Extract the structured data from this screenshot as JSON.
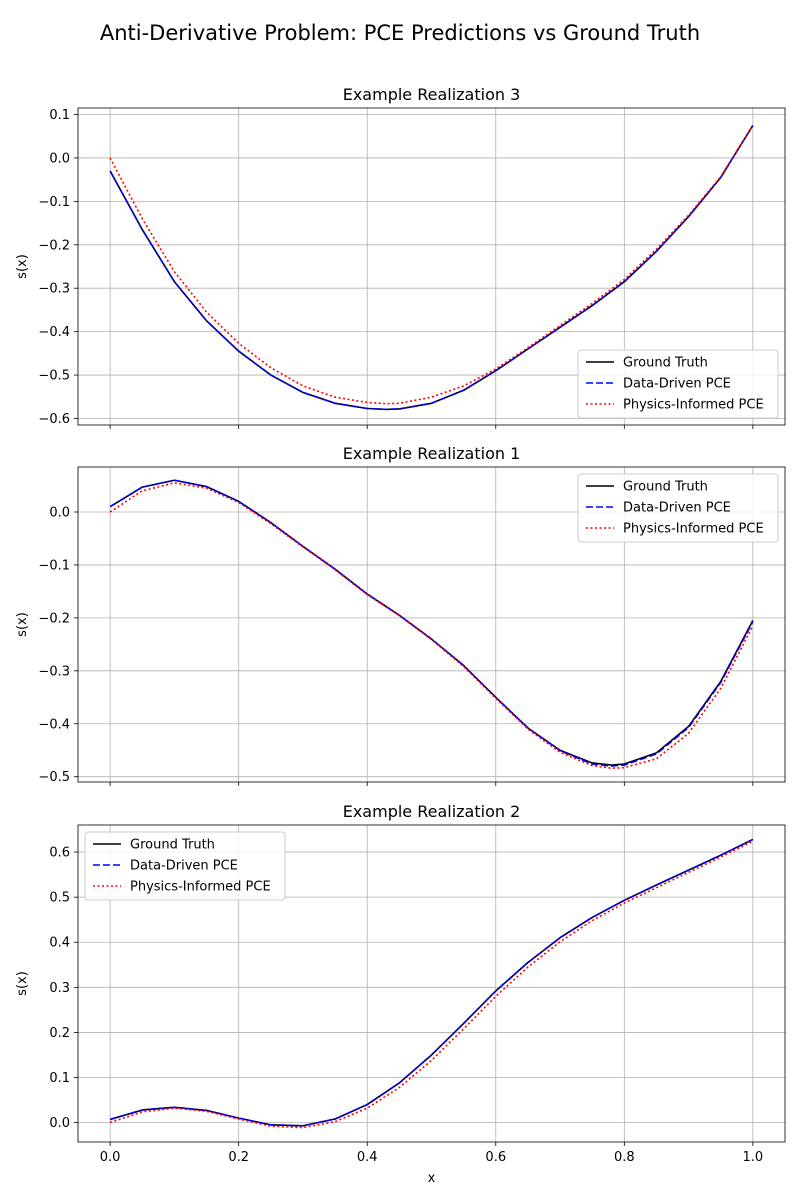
{
  "figure": {
    "suptitle": "Anti-Derivative Problem: PCE Predictions vs Ground Truth"
  },
  "colors": {
    "ground_truth": "#000000",
    "data_driven": "#0000ff",
    "physics_informed": "#ff0000",
    "grid": "#b0b0b0"
  },
  "chart_data": [
    {
      "type": "line",
      "title": "Example Realization 3",
      "xlabel": "",
      "ylabel": "s(x)",
      "xlim": [
        -0.05,
        1.05
      ],
      "ylim": [
        -0.615,
        0.115
      ],
      "xticks": [
        0.0,
        0.2,
        0.4,
        0.6,
        0.8,
        1.0
      ],
      "xtick_labels_visible": false,
      "yticks": [
        -0.6,
        -0.5,
        -0.4,
        -0.3,
        -0.2,
        -0.1,
        0.0,
        0.1
      ],
      "ytick_labels": [
        "−0.6",
        "−0.5",
        "−0.4",
        "−0.3",
        "−0.2",
        "−0.1",
        "0.0",
        "0.1"
      ],
      "grid": true,
      "legend_position": "lower-right",
      "x": [
        0.0,
        0.05,
        0.1,
        0.15,
        0.2,
        0.25,
        0.3,
        0.35,
        0.4,
        0.43,
        0.45,
        0.5,
        0.55,
        0.6,
        0.65,
        0.7,
        0.75,
        0.8,
        0.85,
        0.9,
        0.95,
        1.0
      ],
      "series": [
        {
          "name": "Ground Truth",
          "style": "solid",
          "color_key": "ground_truth",
          "values": [
            -0.03,
            -0.165,
            -0.285,
            -0.375,
            -0.445,
            -0.5,
            -0.54,
            -0.565,
            -0.577,
            -0.579,
            -0.578,
            -0.565,
            -0.535,
            -0.49,
            -0.44,
            -0.39,
            -0.34,
            -0.285,
            -0.215,
            -0.135,
            -0.045,
            0.075
          ]
        },
        {
          "name": "Data-Driven PCE",
          "style": "dashed",
          "color_key": "data_driven",
          "values": [
            -0.03,
            -0.165,
            -0.285,
            -0.375,
            -0.445,
            -0.5,
            -0.54,
            -0.565,
            -0.577,
            -0.579,
            -0.578,
            -0.565,
            -0.535,
            -0.49,
            -0.44,
            -0.39,
            -0.34,
            -0.285,
            -0.215,
            -0.135,
            -0.045,
            0.075
          ]
        },
        {
          "name": "Physics-Informed PCE",
          "style": "dotted",
          "color_key": "physics_informed",
          "values": [
            0.0,
            -0.14,
            -0.262,
            -0.355,
            -0.427,
            -0.483,
            -0.525,
            -0.551,
            -0.563,
            -0.566,
            -0.565,
            -0.551,
            -0.525,
            -0.486,
            -0.437,
            -0.386,
            -0.335,
            -0.28,
            -0.21,
            -0.132,
            -0.043,
            0.075
          ]
        }
      ]
    },
    {
      "type": "line",
      "title": "Example Realization 1",
      "xlabel": "",
      "ylabel": "s(x)",
      "xlim": [
        -0.05,
        1.05
      ],
      "ylim": [
        -0.51,
        0.085
      ],
      "xticks": [
        0.0,
        0.2,
        0.4,
        0.6,
        0.8,
        1.0
      ],
      "xtick_labels_visible": false,
      "yticks": [
        -0.5,
        -0.4,
        -0.3,
        -0.2,
        -0.1,
        0.0
      ],
      "ytick_labels": [
        "−0.5",
        "−0.4",
        "−0.3",
        "−0.2",
        "−0.1",
        "0.0"
      ],
      "grid": true,
      "legend_position": "upper-right",
      "x": [
        0.0,
        0.05,
        0.1,
        0.15,
        0.2,
        0.25,
        0.3,
        0.35,
        0.4,
        0.45,
        0.5,
        0.55,
        0.6,
        0.65,
        0.7,
        0.75,
        0.78,
        0.8,
        0.85,
        0.9,
        0.95,
        1.0
      ],
      "series": [
        {
          "name": "Ground Truth",
          "style": "solid",
          "color_key": "ground_truth",
          "values": [
            0.01,
            0.047,
            0.06,
            0.048,
            0.02,
            -0.02,
            -0.065,
            -0.108,
            -0.155,
            -0.195,
            -0.24,
            -0.29,
            -0.35,
            -0.408,
            -0.45,
            -0.474,
            -0.478,
            -0.476,
            -0.455,
            -0.405,
            -0.32,
            -0.205
          ]
        },
        {
          "name": "Data-Driven PCE",
          "style": "dashed",
          "color_key": "data_driven",
          "values": [
            0.01,
            0.047,
            0.06,
            0.048,
            0.02,
            -0.02,
            -0.065,
            -0.108,
            -0.155,
            -0.195,
            -0.24,
            -0.29,
            -0.35,
            -0.408,
            -0.451,
            -0.476,
            -0.48,
            -0.478,
            -0.457,
            -0.407,
            -0.322,
            -0.207
          ]
        },
        {
          "name": "Physics-Informed PCE",
          "style": "dotted",
          "color_key": "physics_informed",
          "values": [
            0.0,
            0.04,
            0.055,
            0.045,
            0.018,
            -0.022,
            -0.066,
            -0.109,
            -0.156,
            -0.196,
            -0.241,
            -0.292,
            -0.352,
            -0.41,
            -0.454,
            -0.479,
            -0.484,
            -0.483,
            -0.466,
            -0.418,
            -0.333,
            -0.215
          ]
        }
      ]
    },
    {
      "type": "line",
      "title": "Example Realization 2",
      "xlabel": "x",
      "ylabel": "s(x)",
      "xlim": [
        -0.05,
        1.05
      ],
      "ylim": [
        -0.043,
        0.66
      ],
      "xticks": [
        0.0,
        0.2,
        0.4,
        0.6,
        0.8,
        1.0
      ],
      "xtick_labels_visible": true,
      "xtick_labels": [
        "0.0",
        "0.2",
        "0.4",
        "0.6",
        "0.8",
        "1.0"
      ],
      "yticks": [
        0.0,
        0.1,
        0.2,
        0.3,
        0.4,
        0.5,
        0.6
      ],
      "ytick_labels": [
        "0.0",
        "0.1",
        "0.2",
        "0.3",
        "0.4",
        "0.5",
        "0.6"
      ],
      "grid": true,
      "legend_position": "upper-left",
      "x": [
        0.0,
        0.05,
        0.1,
        0.15,
        0.2,
        0.25,
        0.3,
        0.35,
        0.4,
        0.45,
        0.5,
        0.55,
        0.6,
        0.65,
        0.7,
        0.75,
        0.8,
        0.85,
        0.9,
        0.95,
        1.0
      ],
      "series": [
        {
          "name": "Ground Truth",
          "style": "solid",
          "color_key": "ground_truth",
          "values": [
            0.007,
            0.028,
            0.034,
            0.027,
            0.01,
            -0.005,
            -0.007,
            0.008,
            0.04,
            0.088,
            0.15,
            0.22,
            0.292,
            0.355,
            0.41,
            0.455,
            0.493,
            0.527,
            0.56,
            0.593,
            0.628
          ]
        },
        {
          "name": "Data-Driven PCE",
          "style": "dashed",
          "color_key": "data_driven",
          "values": [
            0.007,
            0.028,
            0.034,
            0.027,
            0.01,
            -0.005,
            -0.007,
            0.008,
            0.04,
            0.088,
            0.15,
            0.22,
            0.292,
            0.355,
            0.41,
            0.455,
            0.493,
            0.527,
            0.56,
            0.593,
            0.628
          ]
        },
        {
          "name": "Physics-Informed PCE",
          "style": "dotted",
          "color_key": "physics_informed",
          "values": [
            0.0,
            0.024,
            0.032,
            0.025,
            0.008,
            -0.008,
            -0.011,
            0.002,
            0.032,
            0.078,
            0.138,
            0.208,
            0.28,
            0.345,
            0.401,
            0.448,
            0.487,
            0.521,
            0.555,
            0.589,
            0.624
          ]
        }
      ]
    }
  ]
}
